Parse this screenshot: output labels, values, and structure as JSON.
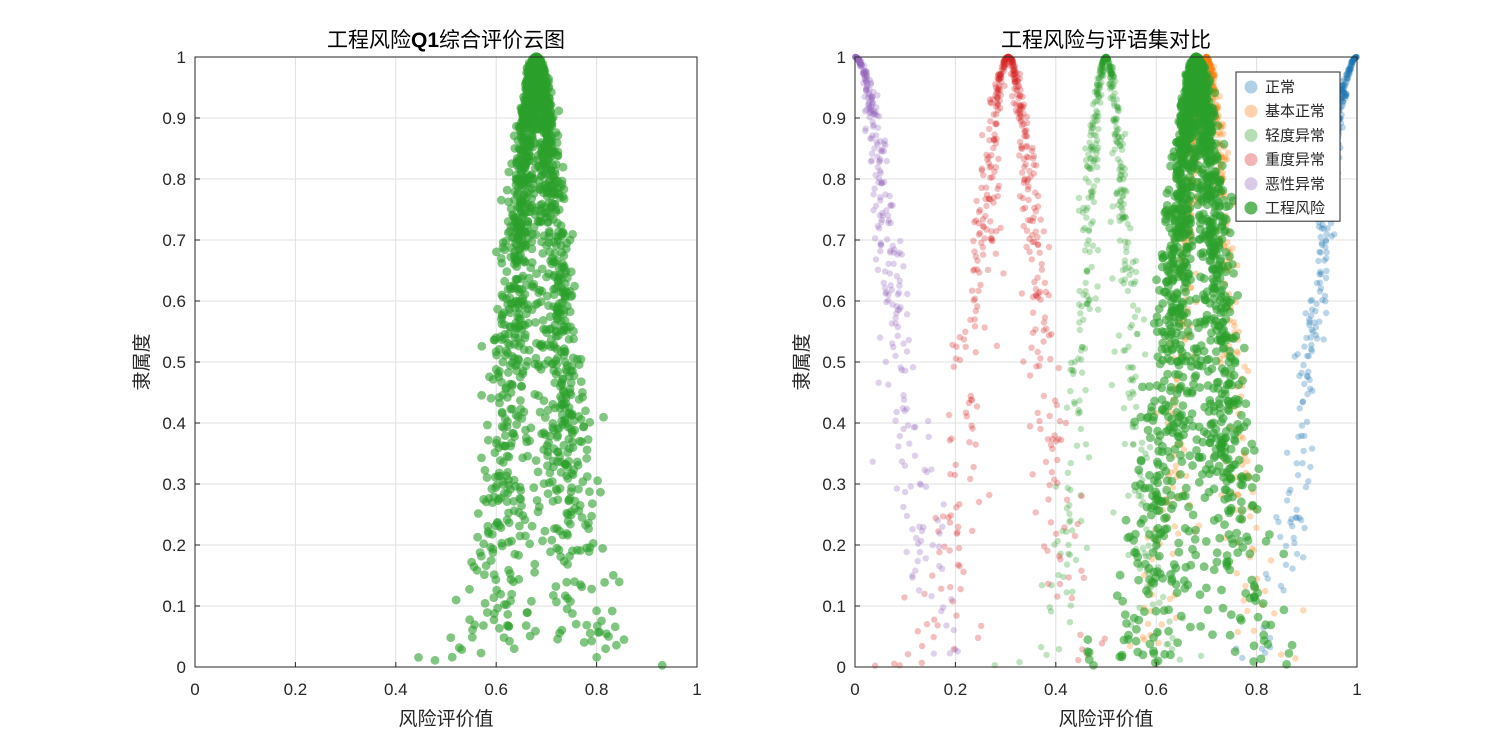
{
  "colors": {
    "normal": "#1f77b4",
    "basic_normal": "#ff7f0e",
    "mild_abnormal": "#2ca02c",
    "severe_abnormal": "#d62728",
    "malignant_abnormal": "#9467bd",
    "engineering_risk": "#2ca02c",
    "grid": "#e0e0e0",
    "axis": "#262626"
  },
  "chart_data": [
    {
      "type": "scatter",
      "title_prefix": "工程风险",
      "title_bold": "Q1",
      "title_suffix": "综合评价云图",
      "xlabel": "风险评价值",
      "ylabel": "隶属度",
      "xlim": [
        0,
        1
      ],
      "ylim": [
        0,
        1
      ],
      "x_ticks": [
        "0",
        "0.2",
        "0.4",
        "0.6",
        "0.8",
        "1"
      ],
      "y_ticks": [
        "0",
        "0.1",
        "0.2",
        "0.3",
        "0.4",
        "0.5",
        "0.6",
        "0.7",
        "0.8",
        "0.9",
        "1"
      ],
      "grid": true,
      "series": [
        {
          "key": "engineering_risk",
          "cloud": {
            "Ex": 0.68,
            "En": 0.04,
            "He": 0.02
          },
          "n": 1800,
          "opacity": 0.6
        }
      ]
    },
    {
      "type": "scatter",
      "title": "工程风险与评语集对比",
      "xlabel": "风险评价值",
      "ylabel": "隶属度",
      "xlim": [
        0,
        1
      ],
      "ylim": [
        0,
        1
      ],
      "x_ticks": [
        "0",
        "0.2",
        "0.4",
        "0.6",
        "0.8",
        "1"
      ],
      "y_ticks": [
        "0",
        "0.1",
        "0.2",
        "0.3",
        "0.4",
        "0.5",
        "0.6",
        "0.7",
        "0.8",
        "0.9",
        "1"
      ],
      "grid": true,
      "legend_position": "top-right",
      "series": [
        {
          "key": "normal",
          "name": "正常",
          "cloud": {
            "Ex": 1.0,
            "En": 0.078,
            "He": 0.01
          },
          "n": 300,
          "opacity": 0.3,
          "half": "left"
        },
        {
          "key": "basic_normal",
          "name": "基本正常",
          "cloud": {
            "Ex": 0.7,
            "En": 0.045,
            "He": 0.012
          },
          "n": 500,
          "opacity": 0.3
        },
        {
          "key": "mild_abnormal",
          "name": "轻度异常",
          "cloud": {
            "Ex": 0.5,
            "En": 0.045,
            "He": 0.012
          },
          "n": 500,
          "opacity": 0.3
        },
        {
          "key": "severe_abnormal",
          "name": "重度异常",
          "cloud": {
            "Ex": 0.305,
            "En": 0.06,
            "He": 0.015
          },
          "n": 500,
          "opacity": 0.3
        },
        {
          "key": "malignant_abnormal",
          "name": "恶性异常",
          "cloud": {
            "Ex": 0.0,
            "En": 0.078,
            "He": 0.015
          },
          "n": 300,
          "opacity": 0.3,
          "half": "right"
        },
        {
          "key": "engineering_risk",
          "name": "工程风险",
          "cloud": {
            "Ex": 0.68,
            "En": 0.04,
            "He": 0.02
          },
          "n": 1800,
          "opacity": 0.6
        }
      ]
    }
  ]
}
